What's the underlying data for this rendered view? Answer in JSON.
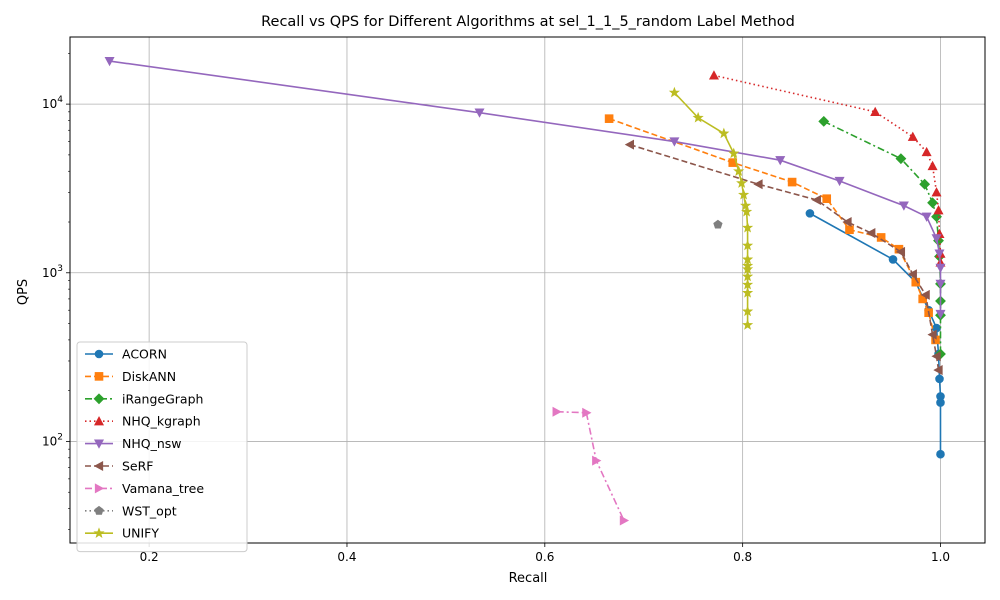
{
  "chart_data": {
    "type": "line",
    "title": "Recall vs QPS for Different Algorithms at sel_1_1_5_random Label Method",
    "xlabel": "Recall",
    "ylabel": "QPS",
    "xlim": [
      0.12,
      1.045
    ],
    "ylim": [
      25,
      25000
    ],
    "yscale": "log",
    "grid": true,
    "legend_position": "lower-left",
    "x_ticks": [
      {
        "value": 0.2,
        "label": "0.2"
      },
      {
        "value": 0.4,
        "label": "0.4"
      },
      {
        "value": 0.6,
        "label": "0.6"
      },
      {
        "value": 0.8,
        "label": "0.8"
      },
      {
        "value": 1.0,
        "label": "1.0"
      }
    ],
    "y_ticks": [
      {
        "value": 100,
        "label": "10",
        "sup": "2"
      },
      {
        "value": 1000,
        "label": "10",
        "sup": "3"
      },
      {
        "value": 10000,
        "label": "10",
        "sup": "4"
      }
    ],
    "series": [
      {
        "name": "ACORN",
        "color": "#1f77b4",
        "marker": "circle",
        "dash": "solid",
        "x": [
          0.868,
          0.952,
          0.975,
          0.988,
          0.996,
          0.998,
          0.999,
          1.0,
          1.0,
          1.0
        ],
        "y": [
          2250,
          1200,
          880,
          600,
          470,
          330,
          235,
          185,
          170,
          84
        ]
      },
      {
        "name": "DiskANN",
        "color": "#ff7f0e",
        "marker": "square",
        "dash": "dashed",
        "x": [
          0.665,
          0.79,
          0.85,
          0.885,
          0.908,
          0.94,
          0.958,
          0.975,
          0.982,
          0.988,
          0.995
        ],
        "y": [
          8200,
          4500,
          3450,
          2750,
          1800,
          1620,
          1380,
          880,
          700,
          580,
          400
        ]
      },
      {
        "name": "iRangeGraph",
        "color": "#2ca02c",
        "marker": "diamond",
        "dash": "dashdot",
        "x": [
          0.882,
          0.96,
          0.984,
          0.992,
          0.996,
          0.998,
          0.999,
          1.0,
          1.0,
          1.0,
          1.0
        ],
        "y": [
          7900,
          4750,
          3350,
          2600,
          2150,
          1550,
          1250,
          860,
          680,
          560,
          330
        ]
      },
      {
        "name": "NHQ_kgraph",
        "color": "#d62728",
        "marker": "triangle-up",
        "dash": "dotted",
        "x": [
          0.771,
          0.934,
          0.972,
          0.986,
          0.992,
          0.996,
          0.998,
          0.999,
          1.0,
          1.0
        ],
        "y": [
          14800,
          9000,
          6400,
          5200,
          4300,
          3000,
          2350,
          1700,
          1300,
          1150
        ]
      },
      {
        "name": "NHQ_nsw",
        "color": "#9467bd",
        "marker": "triangle-down",
        "dash": "solid",
        "x": [
          0.16,
          0.534,
          0.731,
          0.838,
          0.898,
          0.963,
          0.986,
          0.996,
          0.999,
          1.0,
          1.0,
          1.0
        ],
        "y": [
          18000,
          8900,
          6000,
          4650,
          3500,
          2500,
          2150,
          1600,
          1300,
          1070,
          860,
          570
        ]
      },
      {
        "name": "SeRF",
        "color": "#8c564b",
        "marker": "triangle-left",
        "dash": "dashed",
        "x": [
          0.686,
          0.816,
          0.875,
          0.906,
          0.93,
          0.96,
          0.972,
          0.985,
          0.992,
          0.996,
          0.998
        ],
        "y": [
          5750,
          3350,
          2700,
          2000,
          1720,
          1330,
          980,
          740,
          430,
          320,
          265
        ]
      },
      {
        "name": "Vamana_tree",
        "color": "#e377c2",
        "marker": "triangle-right",
        "dash": "dashdot",
        "x": [
          0.612,
          0.642,
          0.652,
          0.68
        ],
        "y": [
          150,
          148,
          77,
          34
        ]
      },
      {
        "name": "WST_opt",
        "color": "#7f7f7f",
        "marker": "pentagon",
        "dash": "dotted",
        "x": [
          0.775
        ],
        "y": [
          1930
        ]
      },
      {
        "name": "UNIFY",
        "color": "#bcbd22",
        "marker": "star",
        "dash": "solid",
        "x": [
          0.731,
          0.755,
          0.781,
          0.791,
          0.796,
          0.799,
          0.801,
          0.803,
          0.804,
          0.805,
          0.805,
          0.805,
          0.805,
          0.805,
          0.805,
          0.805,
          0.805,
          0.805,
          0.805
        ],
        "y": [
          11700,
          8300,
          6700,
          5100,
          4000,
          3400,
          2900,
          2500,
          2300,
          1850,
          1450,
          1200,
          1100,
          1050,
          950,
          850,
          760,
          590,
          490
        ]
      }
    ]
  }
}
